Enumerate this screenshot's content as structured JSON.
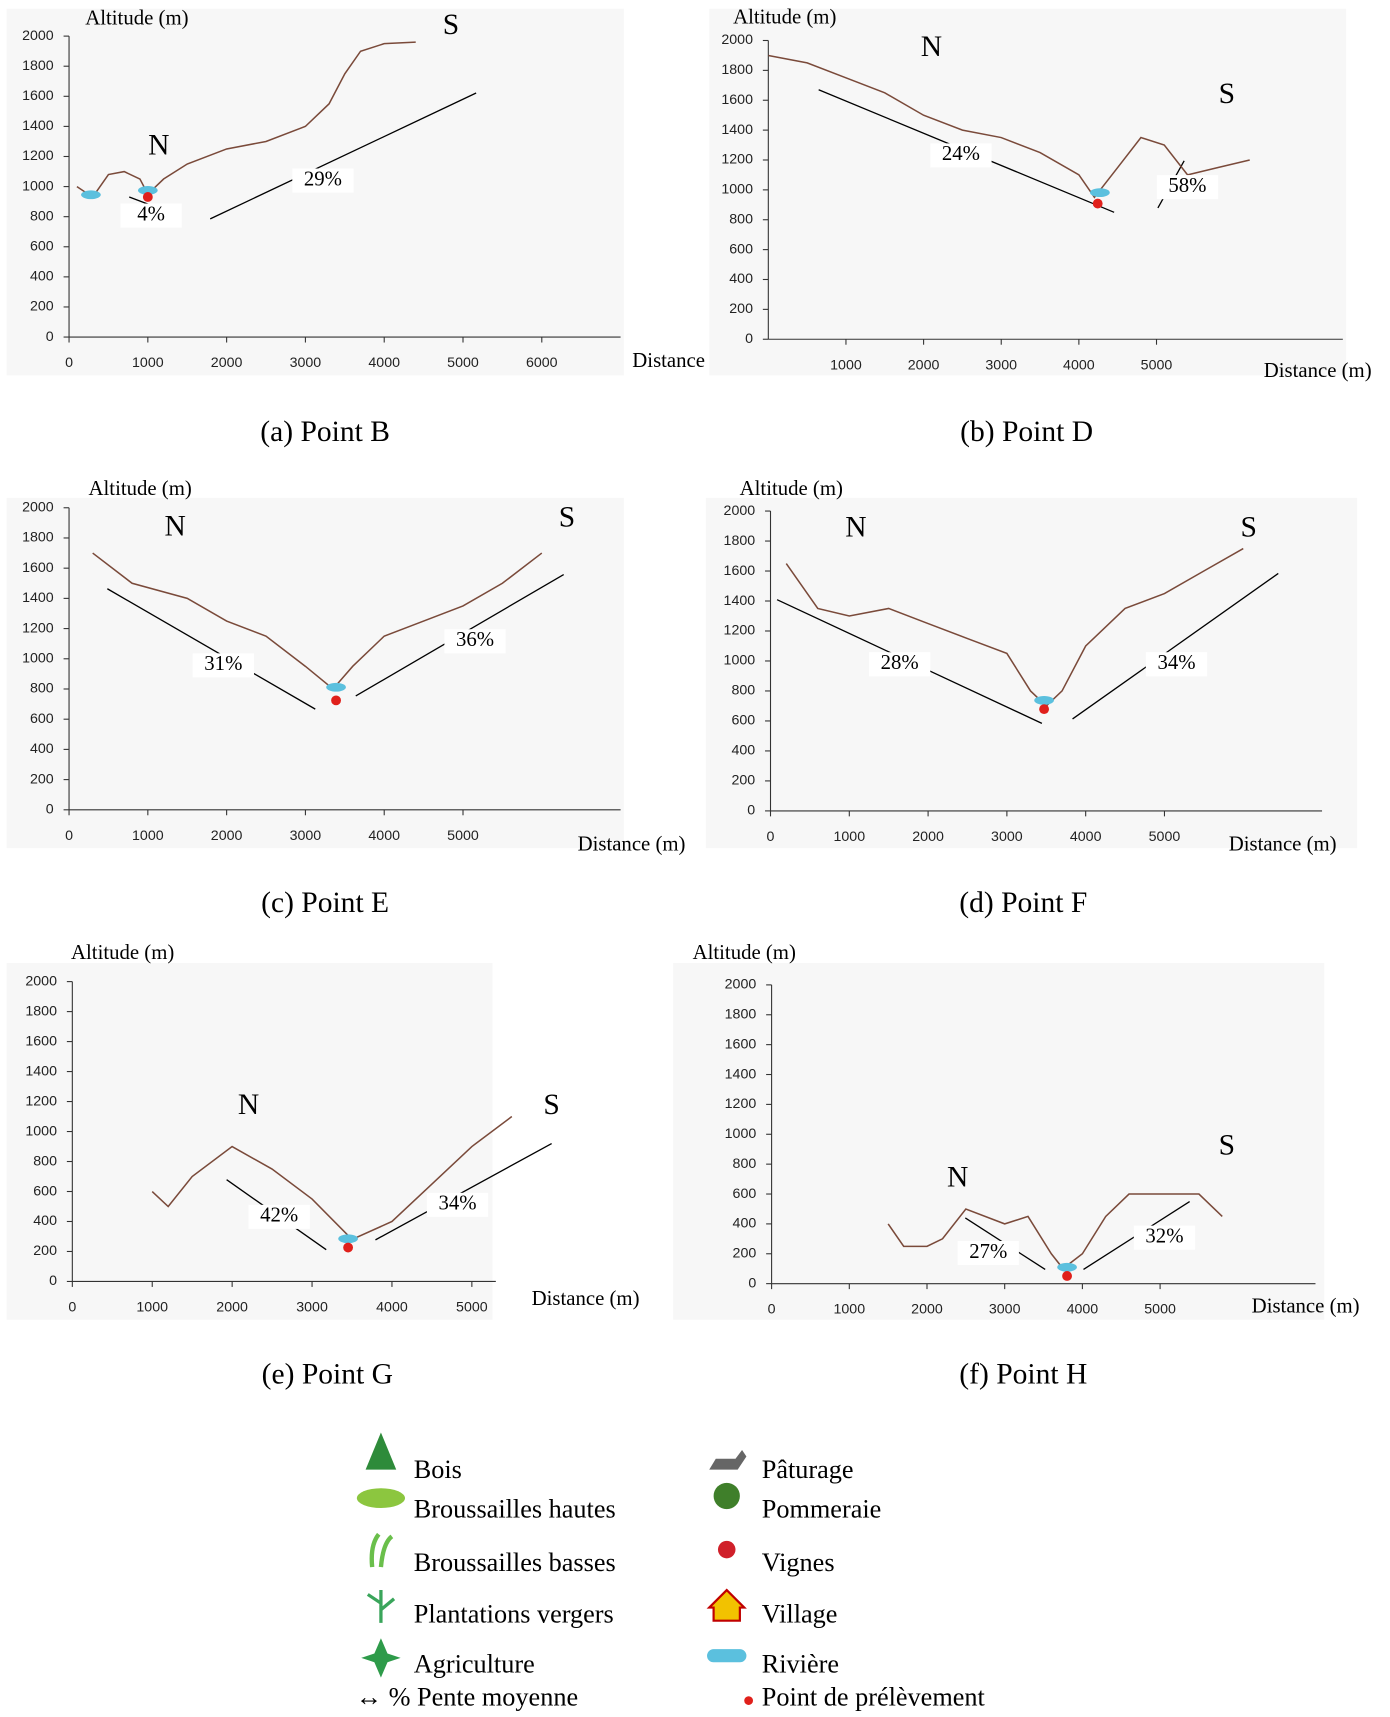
{
  "chart_data": [
    {
      "type": "line",
      "title": "(a) Point B",
      "x_label": "Distance (m)",
      "y_label": "Altitude (m)",
      "north_label": "N",
      "south_label": "S",
      "slope_labels": [
        "4%",
        "29%"
      ],
      "color": "#7a4a3a",
      "x": [
        100,
        300,
        500,
        700,
        900,
        1000,
        1200,
        1500,
        2000,
        2500,
        3000,
        3300,
        3500,
        3700,
        4000,
        4400
      ],
      "values": [
        1000,
        930,
        1080,
        1100,
        1050,
        950,
        1050,
        1150,
        1250,
        1300,
        1400,
        1550,
        1750,
        1900,
        1950,
        1960
      ],
      "xlim": [
        0,
        7000
      ],
      "xticks": [
        0,
        1000,
        2000,
        3000,
        4000,
        5000,
        6000
      ],
      "ylim": [
        0,
        2000
      ],
      "yticks": [
        0,
        200,
        400,
        600,
        800,
        1000,
        1200,
        1400,
        1600,
        1800,
        2000
      ]
    },
    {
      "type": "line",
      "title": "(b) Point D",
      "x_label": "Distance (m)",
      "y_label": "Altitude (m)",
      "north_label": "N",
      "south_label": "S",
      "slope_labels": [
        "24%",
        "58%"
      ],
      "color": "#7a4a3a",
      "x": [
        0,
        500,
        1000,
        1500,
        2000,
        2500,
        3000,
        3500,
        4000,
        4200,
        4500,
        4800,
        5100,
        5400,
        5800,
        6200
      ],
      "values": [
        1900,
        1850,
        1750,
        1650,
        1500,
        1400,
        1350,
        1250,
        1100,
        950,
        1150,
        1350,
        1300,
        1100,
        1150,
        1200
      ],
      "xlim": [
        0,
        7400
      ],
      "xticks": [
        1000,
        2000,
        3000,
        4000,
        5000
      ],
      "ylim": [
        0,
        2000
      ],
      "yticks": [
        0,
        200,
        400,
        600,
        800,
        1000,
        1200,
        1400,
        1600,
        1800,
        2000
      ]
    },
    {
      "type": "line",
      "title": "(c) Point E",
      "x_label": "Distance (m)",
      "y_label": "Altitude (m)",
      "north_label": "N",
      "south_label": "S",
      "slope_labels": [
        "31%",
        "36%"
      ],
      "color": "#7a4a3a",
      "x": [
        300,
        800,
        1500,
        2000,
        2500,
        3000,
        3350,
        3600,
        4000,
        4500,
        5000,
        5500,
        6000
      ],
      "values": [
        1700,
        1500,
        1400,
        1250,
        1150,
        950,
        800,
        950,
        1150,
        1250,
        1350,
        1500,
        1700
      ],
      "xlim": [
        0,
        7000
      ],
      "xticks": [
        0,
        1000,
        2000,
        3000,
        4000,
        5000
      ],
      "ylim": [
        0,
        2000
      ],
      "yticks": [
        0,
        200,
        400,
        600,
        800,
        1000,
        1200,
        1400,
        1600,
        1800,
        2000
      ]
    },
    {
      "type": "line",
      "title": "(d) Point F",
      "x_label": "Distance (m)",
      "y_label": "Altitude (m)",
      "north_label": "N",
      "south_label": "S",
      "slope_labels": [
        "28%",
        "34%"
      ],
      "color": "#7a4a3a",
      "x": [
        200,
        600,
        1000,
        1500,
        2000,
        2500,
        3000,
        3300,
        3500,
        3700,
        4000,
        4500,
        5000,
        5500,
        6000
      ],
      "values": [
        1650,
        1350,
        1300,
        1350,
        1250,
        1150,
        1050,
        800,
        700,
        800,
        1100,
        1350,
        1450,
        1600,
        1750
      ],
      "xlim": [
        0,
        7000
      ],
      "xticks": [
        0,
        1000,
        2000,
        3000,
        4000,
        5000
      ],
      "ylim": [
        0,
        2000
      ],
      "yticks": [
        0,
        200,
        400,
        600,
        800,
        1000,
        1200,
        1400,
        1600,
        1800,
        2000
      ]
    },
    {
      "type": "line",
      "title": "(e) Point G",
      "x_label": "Distance (m)",
      "y_label": "Altitude (m)",
      "north_label": "N",
      "south_label": "S",
      "slope_labels": [
        "42%",
        "34%"
      ],
      "color": "#7a4a3a",
      "x": [
        1000,
        1200,
        1500,
        2000,
        2500,
        3000,
        3500,
        4000,
        4500,
        5000,
        5500
      ],
      "values": [
        600,
        500,
        700,
        900,
        750,
        550,
        280,
        400,
        650,
        900,
        1100
      ],
      "xlim": [
        0,
        5300
      ],
      "xticks": [
        0,
        1000,
        2000,
        3000,
        4000,
        5000
      ],
      "ylim": [
        0,
        2000
      ],
      "yticks": [
        0,
        200,
        400,
        600,
        800,
        1000,
        1200,
        1400,
        1600,
        1800,
        2000
      ]
    },
    {
      "type": "line",
      "title": "(f) Point H",
      "x_label": "Distance (m)",
      "y_label": "Altitude (m)",
      "north_label": "N",
      "south_label": "S",
      "slope_labels": [
        "27%",
        "32%"
      ],
      "color": "#7a4a3a",
      "x": [
        1500,
        1700,
        2000,
        2200,
        2500,
        3000,
        3300,
        3600,
        3750,
        4000,
        4300,
        4600,
        5000,
        5500,
        5800
      ],
      "values": [
        400,
        250,
        250,
        300,
        500,
        400,
        450,
        200,
        100,
        200,
        450,
        600,
        600,
        600,
        450
      ],
      "xlim": [
        0,
        7000
      ],
      "xticks": [
        0,
        1000,
        2000,
        3000,
        4000,
        5000
      ],
      "ylim": [
        0,
        2000
      ],
      "yticks": [
        0,
        200,
        400,
        600,
        800,
        1000,
        1200,
        1400,
        1600,
        1800,
        2000
      ]
    }
  ],
  "legend": {
    "left": [
      "Bois",
      "Broussailles hautes",
      "Broussailles basses",
      "Plantations vergers",
      "Agriculture"
    ],
    "right": [
      "Pâturage",
      "Pommeraie",
      "Vignes",
      "Village",
      "Rivière"
    ],
    "slope_note": "↔ % Pente moyenne",
    "sample_note": "Point de prélèvement"
  }
}
